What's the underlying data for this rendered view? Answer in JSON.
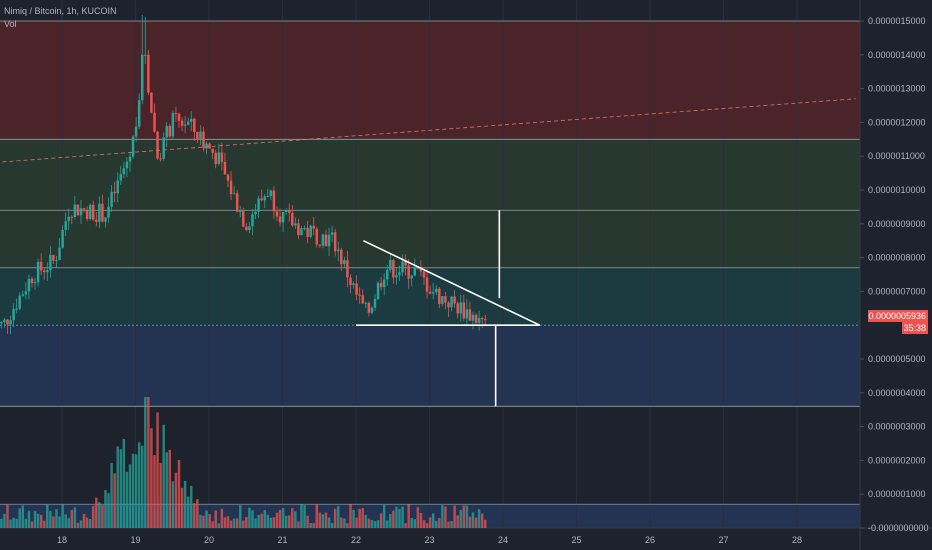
{
  "header": {
    "symbol_line": "Nimiq / Bitcoin, 1h, KUCOIN",
    "vol_label": "Vol"
  },
  "colors": {
    "background": "#1e222d",
    "up": "#26a69a",
    "down": "#ef5350",
    "zone_red": "#4a2429",
    "zone_green": "#26382f",
    "zone_teal": "#1c3b40",
    "zone_blue": "#223452",
    "annotation": "#ffffff"
  },
  "price_tag": {
    "price": "0.0000005936",
    "countdown": "35:38"
  },
  "chart_data": {
    "type": "candlestick",
    "x_axis_labels": [
      "18",
      "19",
      "20",
      "21",
      "22",
      "23",
      "24",
      "25",
      "26",
      "27",
      "28"
    ],
    "y_axis_labels": [
      "0.0000015000",
      "0.0000014000",
      "0.0000013000",
      "0.0000012000",
      "0.0000011000",
      "0.0000010000",
      "0.0000009000",
      "0.0000008000",
      "0.0000007000",
      "0.0000006000",
      "0.0000005000",
      "0.0000004000",
      "0.0000003000",
      "0.0000002000",
      "0.0000001000",
      "-0.0000000000"
    ],
    "price_ylim": [
      4.2e-07,
      1.5e-06
    ],
    "zones": [
      {
        "from": 1.15e-06,
        "to": 1.5e-06,
        "color": "zone_red"
      },
      {
        "from": 9.4e-07,
        "to": 1.15e-06,
        "color": "zone_green"
      },
      {
        "from": 7.7e-07,
        "to": 9.4e-07,
        "color": "zone_green"
      },
      {
        "from": 6e-07,
        "to": 7.7e-07,
        "color": "zone_teal"
      },
      {
        "from": 3.6e-07,
        "to": 6e-07,
        "color": "zone_blue"
      }
    ],
    "horizontal_levels": [
      1.5e-06,
      1.15e-06,
      9.4e-07,
      7.7e-07,
      6e-07,
      3.6e-07
    ],
    "price_waypoints": [
      {
        "day": 17.2,
        "price": 6e-07
      },
      {
        "day": 17.6,
        "price": 7.5e-07
      },
      {
        "day": 17.9,
        "price": 7.9e-07
      },
      {
        "day": 18.1,
        "price": 9.5e-07
      },
      {
        "day": 18.6,
        "price": 9.3e-07
      },
      {
        "day": 18.95,
        "price": 1.12e-06
      },
      {
        "day": 19.12,
        "price": 1.4e-06
      },
      {
        "day": 19.3,
        "price": 1.1e-06
      },
      {
        "day": 19.5,
        "price": 1.2e-06
      },
      {
        "day": 19.7,
        "price": 1.2e-06
      },
      {
        "day": 20.1,
        "price": 1.1e-06
      },
      {
        "day": 20.5,
        "price": 9e-07
      },
      {
        "day": 20.8,
        "price": 1e-06
      },
      {
        "day": 21.0,
        "price": 9.2e-07
      },
      {
        "day": 21.3,
        "price": 8.8e-07
      },
      {
        "day": 21.7,
        "price": 8.5e-07
      },
      {
        "day": 22.0,
        "price": 6.9e-07
      },
      {
        "day": 22.15,
        "price": 6.3e-07
      },
      {
        "day": 22.4,
        "price": 7.7e-07
      },
      {
        "day": 22.8,
        "price": 7.6e-07
      },
      {
        "day": 23.1,
        "price": 6.9e-07
      },
      {
        "day": 23.5,
        "price": 6.4e-07
      },
      {
        "day": 23.8,
        "price": 5.936e-07
      }
    ],
    "candle_days": [
      17.05,
      23.8
    ],
    "trend_line": {
      "from": {
        "day": 17.0,
        "price": 1.08e-06
      },
      "to": {
        "day": 28.8,
        "price": 1.27e-06
      }
    },
    "triangle": {
      "apex": {
        "day": 24.5,
        "price": 6e-07
      },
      "upper_start": {
        "day": 22.1,
        "price": 8.5e-07
      },
      "base_start": {
        "day": 22.0,
        "price": 6e-07
      }
    },
    "target_lines": [
      {
        "day": 23.95,
        "from": 6.8e-07,
        "to": 9.4e-07
      },
      {
        "day": 23.9,
        "from": 6e-07,
        "to": 3.6e-07
      }
    ],
    "volume": {
      "ylim": [
        -1e-08,
        3.5e-07
      ],
      "reference_level": 6e-08,
      "peak": {
        "day": 19.15,
        "value": 3.3e-07
      },
      "typical": 3e-08
    }
  }
}
